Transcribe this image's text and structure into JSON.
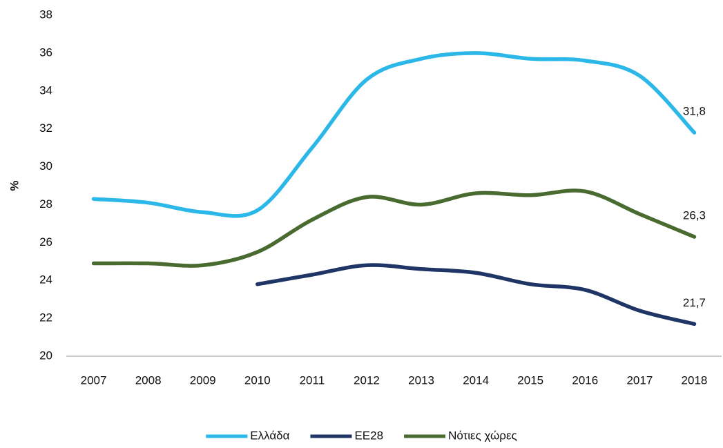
{
  "chart_data": {
    "type": "line",
    "y_label": "%",
    "categories": [
      "2007",
      "2008",
      "2009",
      "2010",
      "2011",
      "2012",
      "2013",
      "2014",
      "2015",
      "2016",
      "2017",
      "2018"
    ],
    "series": [
      {
        "name": "Ελλάδα",
        "color": "#2bb8e8",
        "values": [
          28.3,
          28.1,
          27.6,
          27.7,
          31.0,
          34.6,
          35.7,
          36.0,
          35.7,
          35.6,
          34.8,
          31.8
        ],
        "value_labels": [
          null,
          null,
          null,
          null,
          null,
          null,
          null,
          null,
          null,
          null,
          null,
          "31,8"
        ]
      },
      {
        "name": "ΕΕ28",
        "color": "#1f3566",
        "values": [
          null,
          null,
          null,
          23.8,
          24.3,
          24.8,
          24.6,
          24.4,
          23.8,
          23.5,
          22.4,
          21.7
        ],
        "value_labels": [
          null,
          null,
          null,
          null,
          null,
          null,
          null,
          null,
          null,
          null,
          null,
          "21,7"
        ]
      },
      {
        "name": "Νότιες χώρες",
        "color": "#4a6b2f",
        "values": [
          24.9,
          24.9,
          24.8,
          25.5,
          27.2,
          28.4,
          28.0,
          28.6,
          28.5,
          28.7,
          27.5,
          26.3
        ],
        "value_labels": [
          null,
          null,
          null,
          null,
          null,
          null,
          null,
          null,
          null,
          null,
          null,
          "26,3"
        ]
      }
    ],
    "ylim": [
      20,
      38
    ],
    "yticks": [
      20,
      22,
      24,
      26,
      28,
      30,
      32,
      34,
      36,
      38
    ],
    "grid": false,
    "legend": "bottom"
  }
}
